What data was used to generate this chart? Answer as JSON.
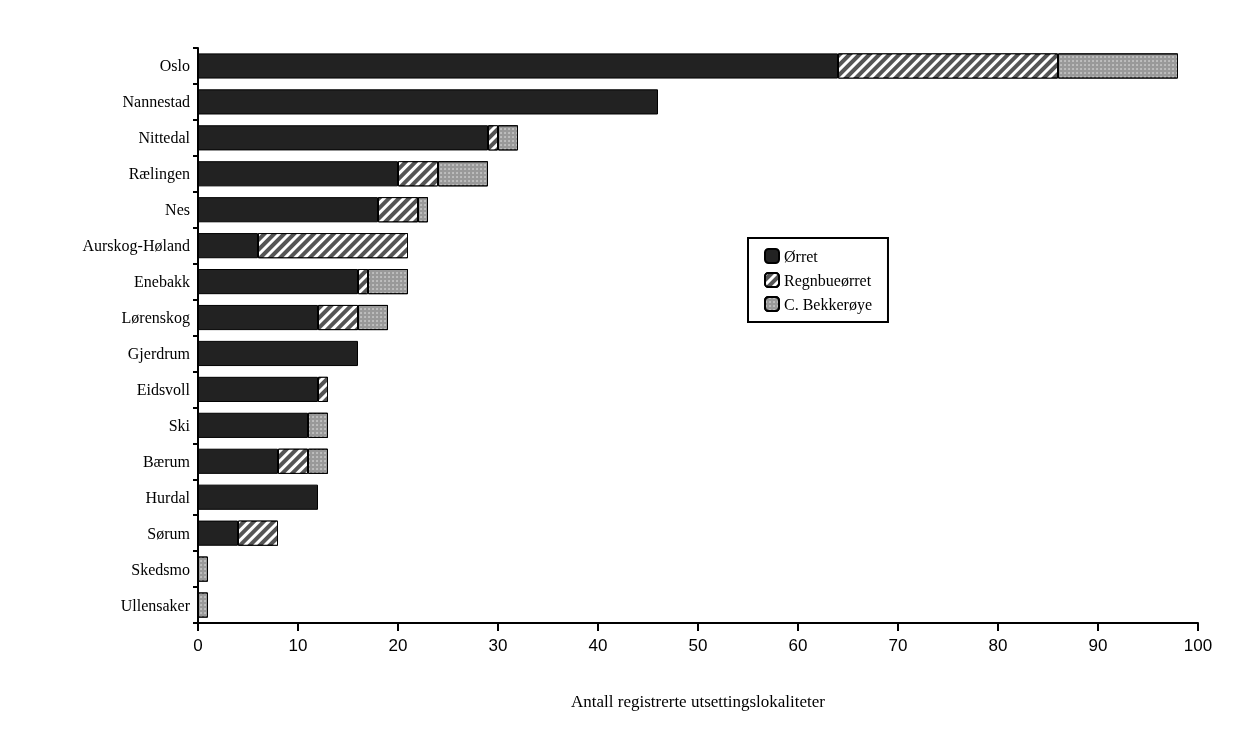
{
  "chart_data": {
    "type": "bar",
    "orientation": "horizontal",
    "stacked": true,
    "categories": [
      "Oslo",
      "Nannestad",
      "Nittedal",
      "Rælingen",
      "Nes",
      "Aurskog-Høland",
      "Enebakk",
      "Lørenskog",
      "Gjerdrum",
      "Eidsvoll",
      "Ski",
      "Bærum",
      "Hurdal",
      "Sørum",
      "Skedsmo",
      "Ullensaker"
    ],
    "series": [
      {
        "name": "Ørret",
        "color": "#222222",
        "values": [
          64,
          46,
          29,
          20,
          18,
          6,
          16,
          12,
          16,
          12,
          11,
          8,
          12,
          4,
          null,
          null
        ]
      },
      {
        "name": "Regnbueørret",
        "color": "#555555",
        "values": [
          22,
          null,
          1,
          4,
          4,
          15,
          1,
          4,
          null,
          1,
          null,
          3,
          null,
          4,
          null,
          null
        ]
      },
      {
        "name": "C. Bekkerøye",
        "color": "#999999",
        "values": [
          12,
          null,
          2,
          5,
          1,
          null,
          4,
          3,
          null,
          null,
          2,
          2,
          null,
          null,
          1,
          1
        ]
      }
    ],
    "xlabel": "Antall registrerte utsettingslokaliteter",
    "xlim": [
      0,
      100
    ],
    "xticks": [
      0,
      10,
      20,
      30,
      40,
      50,
      60,
      70,
      80,
      90,
      100
    ],
    "legend": "right",
    "grid": false
  }
}
